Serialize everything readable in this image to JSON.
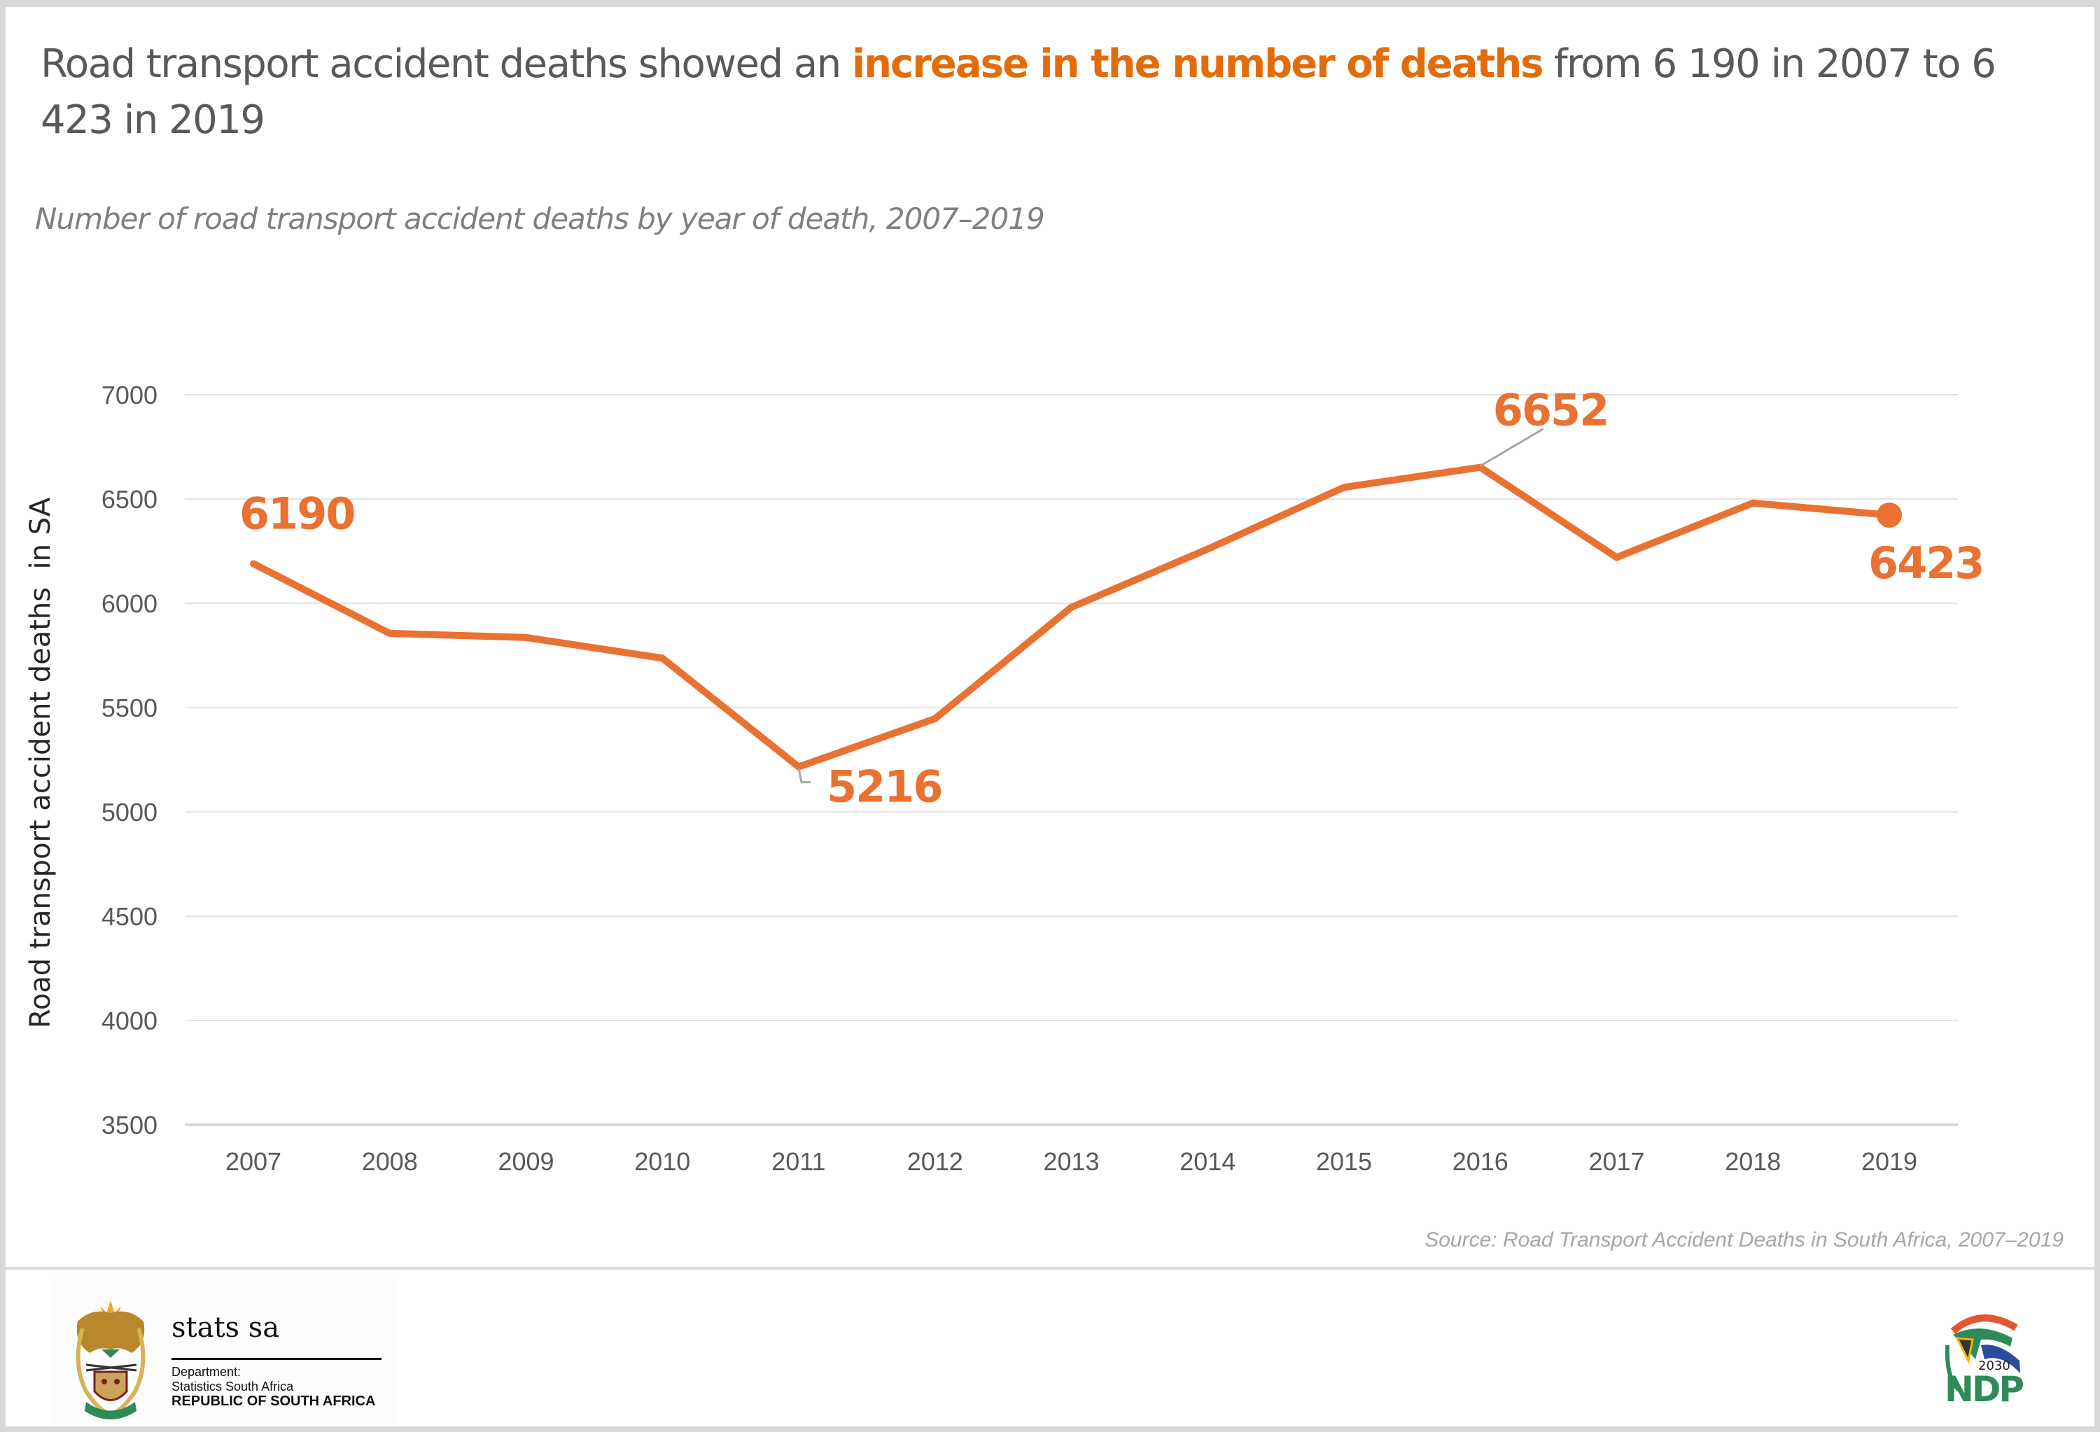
{
  "headline": {
    "prefix": "Road transport accident deaths showed an ",
    "highlight": "increase in the number of deaths",
    "suffix": " from 6 190 in 2007 to 6 423 in 2019"
  },
  "colors": {
    "accent": "#e36c0a",
    "line": "#e97132",
    "text": "#595959",
    "grid": "#e3e3e3",
    "leader": "#a6a6a6"
  },
  "chart_data": {
    "type": "line",
    "title": "Number of road transport accident deaths by year of death, 2007–2019",
    "xlabel": "",
    "ylabel": "Road transport accident deaths  in SA",
    "x": [
      "2007",
      "2008",
      "2009",
      "2010",
      "2011",
      "2012",
      "2013",
      "2014",
      "2015",
      "2016",
      "2017",
      "2018",
      "2019"
    ],
    "series": [
      {
        "name": "Road transport accident deaths",
        "values": [
          6190,
          5856,
          5836,
          5737,
          5216,
          5447,
          5981,
          6260,
          6556,
          6652,
          6220,
          6481,
          6423
        ]
      }
    ],
    "ylim": [
      3500,
      7000
    ],
    "yticks": [
      3500,
      4000,
      4500,
      5000,
      5500,
      6000,
      6500,
      7000
    ],
    "grid": true,
    "legend": "none",
    "annotations": [
      {
        "year": "2007",
        "label": "6190",
        "position": "above"
      },
      {
        "year": "2011",
        "label": "5216",
        "position": "below-right",
        "leader": true
      },
      {
        "year": "2016",
        "label": "6652",
        "position": "above-right",
        "leader": true
      },
      {
        "year": "2019",
        "label": "6423",
        "position": "below",
        "marker": true
      }
    ]
  },
  "source": "Source: Road Transport Accident Deaths in South Africa, 2007–2019",
  "footer": {
    "stats_logo": {
      "name": "stats sa",
      "dept_line1": "Department:",
      "dept_line2": "Statistics South Africa",
      "country": "REPUBLIC OF SOUTH AFRICA",
      "icon": "coat-of-arms-icon"
    },
    "ndp_logo": {
      "year": "2030",
      "text": "NDP",
      "icon": "ndp-flag-icon"
    }
  }
}
